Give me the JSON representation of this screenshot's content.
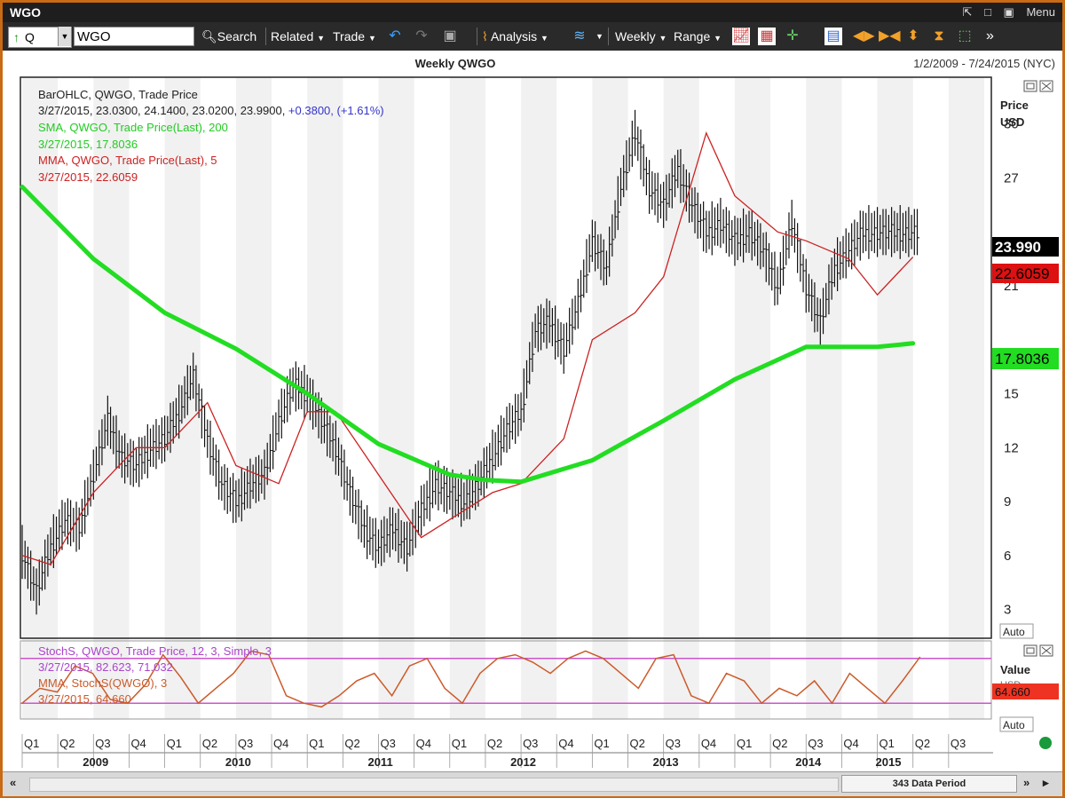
{
  "window": {
    "title": "WGO",
    "menu_label": "Menu",
    "pin_icon": "pin-icon",
    "restore_icon": "restore-icon",
    "maximize_icon": "maximize-icon"
  },
  "toolbar": {
    "symbol_type": "Q",
    "symbol_value": "WGO",
    "search": "Search",
    "related": "Related",
    "trade": "Trade",
    "analysis": "Analysis",
    "interval": "Weekly",
    "range": "Range",
    "overflow": "»"
  },
  "chart": {
    "title": "Weekly QWGO",
    "date_range": "1/2/2009 - 7/24/2015 (NYC)",
    "price_axis_label": "Price",
    "price_axis_unit": "USD",
    "auto_label": "Auto",
    "legend": {
      "line1": "BarOHLC, QWGO, Trade Price",
      "line2_values": "3/27/2015, 23.0300, 24.1400, 23.0200, 23.9900, ",
      "line2_change": "+0.3800, (+1.61%)",
      "sma_label": "SMA, QWGO, Trade Price(Last),  200",
      "sma_value": "3/27/2015, 17.8036",
      "mma_label": "MMA, QWGO, Trade Price(Last),  5",
      "mma_value": "3/27/2015, 22.6059"
    },
    "price_badges": {
      "last": "23.990",
      "mma": "22.6059",
      "sma": "17.8036"
    },
    "colors": {
      "sma": "#22dd22",
      "mma": "#cc2222",
      "bars": "#111111",
      "stoch": "#cc5a2a",
      "stoch_band": "#cc55cc",
      "badge_last": "#000000",
      "badge_mma": "#dd1111",
      "badge_sma": "#22dd22"
    }
  },
  "stoch_panel": {
    "legend": {
      "line1": "StochS, QWGO, Trade Price,  12, 3, Simple, 3",
      "line2": "3/27/2015, 82.623, 71.032",
      "line3": "MMA, StochS(QWGO),  3",
      "line4": "3/27/2015, 64.660"
    },
    "value_axis_label": "Value",
    "value_axis_unit": "USD",
    "badge": "64.660",
    "auto_label": "Auto"
  },
  "time_axis": {
    "quarters": [
      "Q1",
      "Q2",
      "Q3",
      "Q4",
      "Q1",
      "Q2",
      "Q3",
      "Q4",
      "Q1",
      "Q2",
      "Q3",
      "Q4",
      "Q1",
      "Q2",
      "Q3",
      "Q4",
      "Q1",
      "Q2",
      "Q3",
      "Q4",
      "Q1",
      "Q2",
      "Q3",
      "Q4",
      "Q1",
      "Q2",
      "Q3"
    ],
    "years": [
      "2009",
      "2010",
      "2011",
      "2012",
      "2013",
      "2014",
      "2015"
    ]
  },
  "statusbar": {
    "left_arrow": "«",
    "right_arrow": "»",
    "period": "343 Data Period"
  },
  "chart_data": {
    "type": "line",
    "title": "Weekly QWGO",
    "x_quarter_starts": [
      "2009-Q1",
      "2009-Q2",
      "2009-Q3",
      "2009-Q4",
      "2010-Q1",
      "2010-Q2",
      "2010-Q3",
      "2010-Q4",
      "2011-Q1",
      "2011-Q2",
      "2011-Q3",
      "2011-Q4",
      "2012-Q1",
      "2012-Q2",
      "2012-Q3",
      "2012-Q4",
      "2013-Q1",
      "2013-Q2",
      "2013-Q3",
      "2013-Q4",
      "2014-Q1",
      "2014-Q2",
      "2014-Q3",
      "2014-Q4",
      "2015-Q1",
      "2015-Q2",
      "2015-Q3"
    ],
    "ylabel": "Price USD",
    "y_ticks": [
      3,
      6,
      9,
      12,
      15,
      18,
      21,
      24,
      27,
      30
    ],
    "ylim": [
      1.5,
      32.5
    ],
    "series": [
      {
        "name": "BarOHLC, QWGO, Trade Price",
        "style": "ohlc-close",
        "x": [
          2009.0,
          2009.1,
          2009.2,
          2009.3,
          2009.4,
          2009.5,
          2009.6,
          2009.7,
          2009.8,
          2009.9,
          2010.0,
          2010.1,
          2010.2,
          2010.3,
          2010.4,
          2010.5,
          2010.6,
          2010.7,
          2010.8,
          2010.9,
          2011.0,
          2011.1,
          2011.2,
          2011.3,
          2011.4,
          2011.5,
          2011.6,
          2011.7,
          2011.8,
          2011.9,
          2012.0,
          2012.1,
          2012.2,
          2012.3,
          2012.4,
          2012.5,
          2012.6,
          2012.7,
          2012.8,
          2012.9,
          2013.0,
          2013.1,
          2013.2,
          2013.3,
          2013.4,
          2013.5,
          2013.6,
          2013.7,
          2013.8,
          2013.9,
          2014.0,
          2014.1,
          2014.2,
          2014.3,
          2014.4,
          2014.5,
          2014.6,
          2014.7,
          2014.8,
          2014.9,
          2015.0,
          2015.1,
          2015.2,
          2015.3
        ],
        "y": [
          6.2,
          4.0,
          6.5,
          8.0,
          7.5,
          10.5,
          13.5,
          11.5,
          11.0,
          12.0,
          12.5,
          14.0,
          16.0,
          12.5,
          10.0,
          9.0,
          10.0,
          10.5,
          13.5,
          15.5,
          15.0,
          13.5,
          12.0,
          9.5,
          7.5,
          6.5,
          7.5,
          6.5,
          8.5,
          10.0,
          9.5,
          9.0,
          10.0,
          11.5,
          13.0,
          14.0,
          18.5,
          19.0,
          17.5,
          20.0,
          23.5,
          22.0,
          26.5,
          29.5,
          26.5,
          25.5,
          27.5,
          25.5,
          24.0,
          24.5,
          23.5,
          24.0,
          23.0,
          21.0,
          24.5,
          21.0,
          19.0,
          22.0,
          23.0,
          23.99,
          23.99,
          23.99,
          23.99,
          23.99
        ]
      },
      {
        "name": "SMA, QWGO, Trade Price(Last),  200",
        "x": [
          2009.0,
          2009.5,
          2010.0,
          2010.5,
          2011.0,
          2011.5,
          2012.0,
          2012.25,
          2012.5,
          2013.0,
          2013.5,
          2014.0,
          2014.5,
          2015.0,
          2015.25
        ],
        "y": [
          26.5,
          22.5,
          19.5,
          17.5,
          15.0,
          12.2,
          10.5,
          10.2,
          10.1,
          11.3,
          13.5,
          15.8,
          17.6,
          17.6,
          17.8
        ]
      },
      {
        "name": "MMA, QWGO, Trade Price(Last),  5",
        "x": [
          2009.0,
          2009.2,
          2009.5,
          2009.8,
          2010.0,
          2010.3,
          2010.5,
          2010.8,
          2011.0,
          2011.2,
          2011.5,
          2011.8,
          2012.0,
          2012.3,
          2012.5,
          2012.8,
          2013.0,
          2013.3,
          2013.5,
          2013.8,
          2014.0,
          2014.3,
          2014.5,
          2014.8,
          2015.0,
          2015.25
        ],
        "y": [
          6.0,
          5.5,
          9.5,
          12.0,
          12.0,
          14.5,
          11.0,
          10.0,
          14.0,
          14.0,
          10.5,
          7.0,
          8.0,
          9.5,
          10.0,
          12.5,
          18.0,
          19.5,
          21.5,
          29.5,
          26.0,
          24.0,
          23.5,
          22.5,
          20.5,
          22.6
        ]
      }
    ],
    "stochastic": {
      "name": "StochS, QWGO, Trade Price,  12, 3, Simple, 3",
      "ylim": [
        0,
        100
      ],
      "bands": [
        80,
        20
      ],
      "y": [
        20,
        40,
        35,
        70,
        60,
        25,
        20,
        45,
        85,
        55,
        20,
        40,
        60,
        90,
        85,
        30,
        20,
        15,
        30,
        50,
        60,
        30,
        70,
        80,
        40,
        20,
        60,
        80,
        85,
        75,
        60,
        80,
        90,
        80,
        60,
        40,
        80,
        85,
        30,
        20,
        60,
        50,
        20,
        40,
        30,
        50,
        20,
        60,
        40,
        20,
        50,
        82
      ]
    }
  }
}
